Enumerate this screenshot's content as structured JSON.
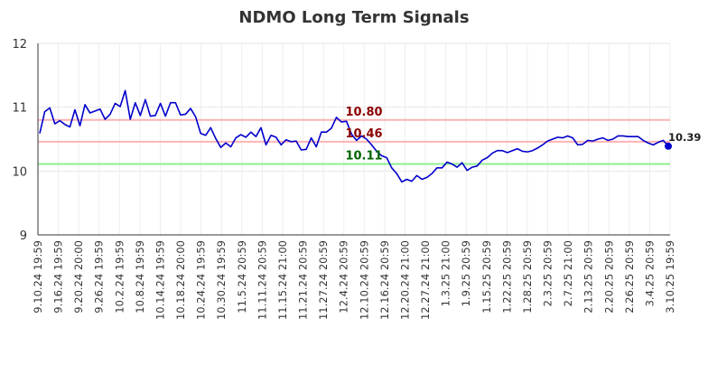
{
  "chart_data": {
    "type": "line",
    "title": "NDMO Long Term Signals",
    "ylim": [
      9,
      12
    ],
    "y_ticks": [
      "9",
      "10",
      "11",
      "12"
    ],
    "x_tick_labels": [
      "9.10.24 19:59",
      "9.16.24 19:59",
      "9.20.24 20:00",
      "9.26.24 19:59",
      "10.2.24 19:59",
      "10.8.24 19:59",
      "10.14.24 19:59",
      "10.18.24 20:00",
      "10.24.24 19:59",
      "10.30.24 19:59",
      "11.5.24 20:59",
      "11.11.24 20:59",
      "11.15.24 21:00",
      "11.21.24 20:59",
      "11.27.24 20:59",
      "12.4.24 20:59",
      "12.10.24 20:59",
      "12.16.24 20:59",
      "12.20.24 21:00",
      "12.27.24 21:00",
      "1.3.25 21:00",
      "1.9.25 20:59",
      "1.15.25 20:59",
      "1.22.25 20:59",
      "1.28.25 20:59",
      "2.3.25 20:59",
      "2.7.25 21:00",
      "2.13.25 20:59",
      "2.20.25 20:59",
      "2.26.25 20:59",
      "3.4.25 20:59",
      "3.10.25 19:59"
    ],
    "values": [
      10.59,
      10.93,
      10.99,
      10.74,
      10.79,
      10.73,
      10.69,
      10.96,
      10.71,
      11.04,
      10.91,
      10.94,
      10.97,
      10.81,
      10.89,
      11.06,
      11.01,
      11.26,
      10.81,
      11.07,
      10.87,
      11.12,
      10.86,
      10.87,
      11.06,
      10.86,
      11.07,
      11.07,
      10.88,
      10.89,
      10.98,
      10.85,
      10.59,
      10.56,
      10.68,
      10.51,
      10.37,
      10.44,
      10.38,
      10.52,
      10.57,
      10.53,
      10.61,
      10.54,
      10.68,
      10.41,
      10.56,
      10.53,
      10.41,
      10.49,
      10.46,
      10.47,
      10.33,
      10.34,
      10.52,
      10.38,
      10.61,
      10.61,
      10.67,
      10.84,
      10.77,
      10.78,
      10.58,
      10.48,
      10.55,
      10.5,
      10.41,
      10.31,
      10.24,
      10.21,
      10.05,
      9.96,
      9.83,
      9.87,
      9.84,
      9.93,
      9.87,
      9.9,
      9.96,
      10.05,
      10.05,
      10.14,
      10.11,
      10.06,
      10.13,
      10.01,
      10.06,
      10.08,
      10.17,
      10.21,
      10.28,
      10.32,
      10.32,
      10.29,
      10.32,
      10.35,
      10.31,
      10.3,
      10.32,
      10.36,
      10.41,
      10.47,
      10.5,
      10.53,
      10.52,
      10.55,
      10.52,
      10.41,
      10.42,
      10.48,
      10.47,
      10.5,
      10.52,
      10.48,
      10.5,
      10.55,
      10.55,
      10.54,
      10.54,
      10.54,
      10.48,
      10.44,
      10.41,
      10.45,
      10.48,
      10.39
    ],
    "reference_lines": [
      {
        "value": 10.8,
        "label": "10.80",
        "line_color": "#ffb3b3",
        "label_color": "#8b0000"
      },
      {
        "value": 10.46,
        "label": "10.46",
        "line_color": "#ffb3b3",
        "label_color": "#8b0000"
      },
      {
        "value": 10.11,
        "label": "10.11",
        "line_color": "#90ee90",
        "label_color": "#006400"
      }
    ],
    "last_value_label": "10.39",
    "line_color": "#0000cc",
    "grid": true,
    "legend": false
  }
}
